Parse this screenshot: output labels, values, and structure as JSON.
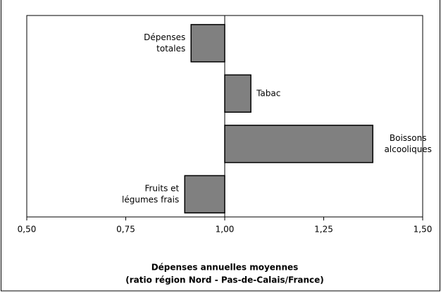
{
  "chart_data": {
    "type": "bar",
    "orientation": "horizontal",
    "categories": [
      [
        "Dépenses",
        "totales"
      ],
      [
        "Tabac"
      ],
      [
        "Boissons",
        "alcooliques"
      ],
      [
        "Fruits et",
        "légumes frais"
      ]
    ],
    "values": [
      0.915,
      1.066,
      1.374,
      0.899
    ],
    "base": 1,
    "color": "#808080",
    "xlim": [
      0.5,
      1.5
    ],
    "xticks": [
      {
        "value": 0.5,
        "label": "0,50"
      },
      {
        "value": 0.75,
        "label": "0,75"
      },
      {
        "value": 1,
        "label": "1,00"
      },
      {
        "value": 1.25,
        "label": "1,25"
      },
      {
        "value": 1.5,
        "label": "1,50"
      }
    ],
    "xlabel": [
      "Dépenses annuelles moyennes",
      "(ratio région Nord - Pas-de-Calais/France)"
    ],
    "grid": false
  }
}
